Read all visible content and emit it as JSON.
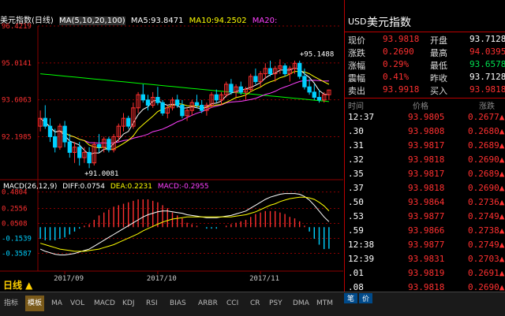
{
  "chart_header": {
    "instrument": "美元指数(日线)",
    "ma_label": "MA(5,10,20,100)",
    "ma5": "MA5:93.8471",
    "ma10": "MA10:94.2502",
    "ma20": "MA20:"
  },
  "macd_header": {
    "label": "MACD(26,12,9)",
    "diff": "DIFF:0.0754",
    "dea": "DEA:0.2231",
    "macd": "MACD:-0.2955"
  },
  "period_label": "日线 ▲",
  "colors": {
    "up": "#ff3030",
    "down": "#00d0ff",
    "ma5": "#ffffff",
    "ma10": "#ffff00",
    "ma20": "#ff40ff",
    "ma100": "#00ff00",
    "grid": "#8b0000"
  },
  "chart_data": [
    {
      "type": "candlestick",
      "title": "",
      "yticks": [
        "96.4219",
        "95.0141",
        "93.6063",
        "92.1985"
      ],
      "ylim": [
        90.8,
        96.4219
      ],
      "xticks": [
        "2017/09",
        "2017/10",
        "2017/11"
      ],
      "annotations": [
        {
          "text": "+95.1488",
          "value": 95.1488,
          "index": 54
        },
        {
          "text": "+91.0081",
          "value": 91.0081,
          "index": 10
        }
      ],
      "ohlc": [
        [
          92.6,
          93.2,
          92.4,
          92.9
        ],
        [
          92.9,
          93.4,
          92.5,
          92.6
        ],
        [
          92.6,
          92.9,
          92.0,
          92.2
        ],
        [
          92.2,
          92.5,
          91.6,
          91.8
        ],
        [
          91.8,
          92.7,
          91.7,
          92.6
        ],
        [
          92.6,
          92.8,
          91.8,
          92.0
        ],
        [
          92.0,
          92.3,
          91.4,
          91.6
        ],
        [
          91.6,
          92.0,
          91.2,
          91.8
        ],
        [
          91.8,
          92.0,
          91.1,
          91.4
        ],
        [
          91.4,
          91.8,
          91.2,
          91.6
        ],
        [
          91.6,
          91.8,
          91.0,
          91.2
        ],
        [
          91.2,
          92.0,
          91.1,
          91.9
        ],
        [
          91.9,
          92.3,
          91.6,
          91.8
        ],
        [
          91.8,
          92.2,
          91.6,
          92.1
        ],
        [
          92.1,
          92.2,
          91.6,
          91.7
        ],
        [
          91.7,
          92.3,
          91.6,
          92.2
        ],
        [
          92.2,
          92.7,
          92.0,
          92.6
        ],
        [
          92.6,
          93.1,
          92.4,
          92.9
        ],
        [
          92.9,
          93.0,
          92.5,
          92.6
        ],
        [
          92.6,
          93.5,
          92.5,
          93.3
        ],
        [
          93.3,
          93.9,
          93.1,
          93.8
        ],
        [
          93.8,
          94.2,
          93.5,
          93.6
        ],
        [
          93.6,
          93.8,
          93.2,
          93.4
        ],
        [
          93.4,
          93.9,
          93.3,
          93.7
        ],
        [
          93.7,
          94.1,
          93.4,
          93.5
        ],
        [
          93.5,
          93.6,
          93.0,
          93.1
        ],
        [
          93.1,
          93.4,
          92.9,
          93.3
        ],
        [
          93.3,
          93.7,
          93.2,
          93.6
        ],
        [
          93.6,
          93.8,
          93.3,
          93.4
        ],
        [
          93.4,
          93.6,
          92.9,
          93.0
        ],
        [
          93.0,
          93.3,
          92.8,
          93.2
        ],
        [
          93.2,
          93.6,
          93.0,
          93.5
        ],
        [
          93.5,
          93.8,
          93.3,
          93.4
        ],
        [
          93.4,
          93.6,
          93.1,
          93.2
        ],
        [
          93.2,
          93.5,
          93.0,
          93.4
        ],
        [
          93.4,
          93.9,
          93.3,
          93.8
        ],
        [
          93.8,
          94.0,
          93.5,
          93.6
        ],
        [
          93.6,
          93.9,
          93.4,
          93.8
        ],
        [
          93.8,
          94.3,
          93.7,
          94.2
        ],
        [
          94.2,
          94.4,
          93.8,
          93.9
        ],
        [
          93.9,
          94.2,
          93.7,
          94.1
        ],
        [
          94.1,
          94.3,
          93.8,
          93.9
        ],
        [
          93.9,
          94.1,
          93.6,
          94.0
        ],
        [
          94.0,
          94.6,
          93.9,
          94.5
        ],
        [
          94.5,
          94.8,
          94.2,
          94.3
        ],
        [
          94.3,
          94.7,
          94.1,
          94.6
        ],
        [
          94.6,
          95.0,
          94.4,
          94.8
        ],
        [
          94.8,
          95.1,
          94.5,
          94.6
        ],
        [
          94.6,
          94.9,
          94.3,
          94.8
        ],
        [
          94.8,
          95.15,
          94.6,
          94.9
        ],
        [
          94.9,
          95.0,
          94.5,
          94.6
        ],
        [
          94.6,
          94.9,
          94.3,
          94.8
        ],
        [
          94.8,
          95.1,
          94.6,
          95.0
        ],
        [
          95.0,
          95.1,
          94.4,
          94.5
        ],
        [
          94.5,
          94.8,
          94.0,
          94.1
        ],
        [
          94.1,
          94.4,
          93.8,
          93.9
        ],
        [
          93.9,
          94.2,
          93.6,
          93.7
        ],
        [
          93.7,
          94.0,
          93.5,
          93.6
        ],
        [
          93.6,
          93.9,
          93.5,
          93.8
        ],
        [
          93.8,
          94.0,
          93.6,
          93.98
        ]
      ]
    },
    {
      "type": "bar",
      "title": "",
      "yticks": [
        "0.4804",
        "0.2556",
        "0.0508",
        "-0.1539",
        "-0.3587"
      ],
      "ylim": [
        -0.45,
        0.52
      ],
      "series": [
        {
          "name": "DIFF",
          "values": [
            -0.3,
            -0.33,
            -0.35,
            -0.37,
            -0.38,
            -0.38,
            -0.37,
            -0.36,
            -0.34,
            -0.32,
            -0.3,
            -0.26,
            -0.22,
            -0.18,
            -0.14,
            -0.1,
            -0.06,
            -0.02,
            0.02,
            0.06,
            0.1,
            0.14,
            0.17,
            0.19,
            0.21,
            0.22,
            0.22,
            0.21,
            0.2,
            0.19,
            0.17,
            0.16,
            0.15,
            0.14,
            0.13,
            0.13,
            0.13,
            0.14,
            0.15,
            0.16,
            0.18,
            0.2,
            0.22,
            0.26,
            0.3,
            0.34,
            0.38,
            0.41,
            0.43,
            0.45,
            0.46,
            0.46,
            0.46,
            0.45,
            0.42,
            0.37,
            0.3,
            0.22,
            0.14,
            0.075
          ]
        },
        {
          "name": "DEA",
          "values": [
            -0.22,
            -0.24,
            -0.26,
            -0.28,
            -0.3,
            -0.31,
            -0.32,
            -0.33,
            -0.33,
            -0.33,
            -0.32,
            -0.31,
            -0.3,
            -0.28,
            -0.26,
            -0.24,
            -0.21,
            -0.18,
            -0.15,
            -0.12,
            -0.09,
            -0.05,
            -0.02,
            0.01,
            0.04,
            0.07,
            0.09,
            0.11,
            0.12,
            0.13,
            0.14,
            0.14,
            0.14,
            0.14,
            0.14,
            0.14,
            0.14,
            0.14,
            0.14,
            0.14,
            0.15,
            0.16,
            0.17,
            0.19,
            0.21,
            0.24,
            0.27,
            0.3,
            0.32,
            0.35,
            0.37,
            0.39,
            0.4,
            0.41,
            0.41,
            0.4,
            0.38,
            0.34,
            0.29,
            0.223
          ]
        },
        {
          "name": "MACD",
          "values": [
            -0.16,
            -0.18,
            -0.18,
            -0.18,
            -0.16,
            -0.14,
            -0.1,
            -0.06,
            -0.02,
            0.02,
            0.04,
            0.1,
            0.16,
            0.2,
            0.24,
            0.28,
            0.3,
            0.32,
            0.34,
            0.36,
            0.38,
            0.38,
            0.38,
            0.36,
            0.34,
            0.3,
            0.26,
            0.2,
            0.16,
            0.12,
            0.06,
            0.04,
            0.02,
            0.0,
            -0.02,
            -0.02,
            -0.02,
            0.0,
            0.02,
            0.04,
            0.06,
            0.08,
            0.1,
            0.14,
            0.18,
            0.2,
            0.22,
            0.22,
            0.22,
            0.2,
            0.18,
            0.14,
            0.12,
            0.08,
            0.02,
            -0.06,
            -0.16,
            -0.24,
            -0.3,
            -0.2955
          ]
        }
      ]
    }
  ],
  "right_panel": {
    "code": "USD",
    "name": "美元指数",
    "quote_rows": [
      {
        "l1": "现价",
        "v1": "93.9818",
        "c1": "#ff3030",
        "l2": "开盘",
        "v2": "93.7128",
        "c2": "#ffffff"
      },
      {
        "l1": "涨跌",
        "v1": "0.2690",
        "c1": "#ff3030",
        "l2": "最高",
        "v2": "94.0395",
        "c2": "#ff3030"
      },
      {
        "l1": "涨幅",
        "v1": "0.29%",
        "c1": "#ff3030",
        "l2": "最低",
        "v2": "93.6578",
        "c2": "#00e050"
      },
      {
        "l1": "震幅",
        "v1": "0.41%",
        "c1": "#ff3030",
        "l2": "昨收",
        "v2": "93.7128",
        "c2": "#ffffff"
      },
      {
        "l1": "卖出",
        "v1": "93.9918",
        "c1": "#ff3030",
        "l2": "买入",
        "v2": "93.9818",
        "c2": "#ff3030"
      }
    ],
    "trade_header": {
      "time": "时间",
      "price": "价格",
      "change": "涨跌"
    },
    "trades": [
      {
        "time": "12:37",
        "price": "93.9805",
        "change": "0.2677▲"
      },
      {
        "time": ".30",
        "price": "93.9808",
        "change": "0.2680▲"
      },
      {
        "time": ".31",
        "price": "93.9817",
        "change": "0.2689▲"
      },
      {
        "time": ".32",
        "price": "93.9818",
        "change": "0.2690▲"
      },
      {
        "time": ".35",
        "price": "93.9817",
        "change": "0.2689▲"
      },
      {
        "time": ".37",
        "price": "93.9818",
        "change": "0.2690▲"
      },
      {
        "time": ".50",
        "price": "93.9864",
        "change": "0.2736▲"
      },
      {
        "time": ".53",
        "price": "93.9877",
        "change": "0.2749▲"
      },
      {
        "time": ".59",
        "price": "93.9866",
        "change": "0.2738▲"
      },
      {
        "time": "12:38",
        "price": "93.9877",
        "change": "0.2749▲"
      },
      {
        "time": "12:39",
        "price": "93.9831",
        "change": "0.2703▲"
      },
      {
        "time": ".01",
        "price": "93.9819",
        "change": "0.2691▲"
      },
      {
        "time": ".08",
        "price": "93.9818",
        "change": "0.2690▲"
      }
    ],
    "bottom_tabs": [
      "笔",
      "价"
    ]
  },
  "tabs": [
    "指标",
    "模板",
    "MA",
    "VOL",
    "MACD",
    "KDJ",
    "RSI",
    "BIAS",
    "ARBR",
    "CCI",
    "CR",
    "PSY",
    "DMA",
    "MTM"
  ]
}
